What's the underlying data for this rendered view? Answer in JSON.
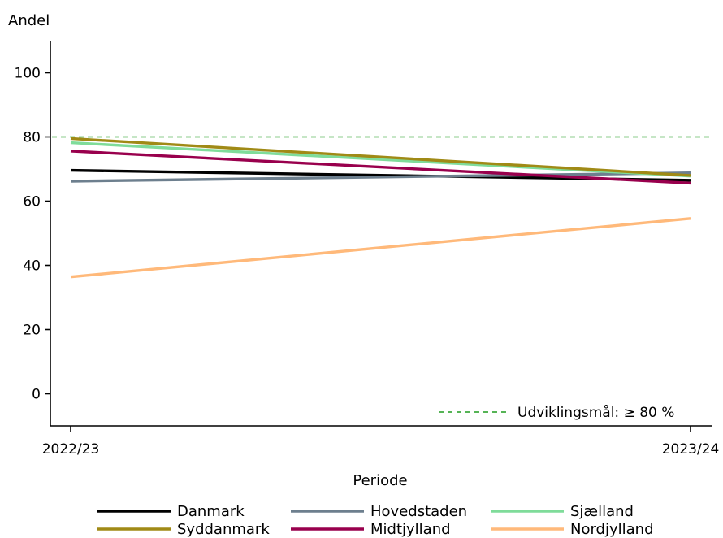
{
  "chart_data": {
    "type": "line",
    "ylabel": "Andel",
    "xlabel": "Periode",
    "categories": [
      "2022/23",
      "2023/24"
    ],
    "ylim": [
      -10,
      110
    ],
    "yticks": [
      0,
      20,
      40,
      60,
      80,
      100
    ],
    "grid": false,
    "legend_position": "bottom",
    "series": [
      {
        "name": "Danmark",
        "color": "#000000",
        "values": [
          69.6,
          66.5
        ]
      },
      {
        "name": "Hovedstaden",
        "color": "#6d7f8e",
        "values": [
          66.2,
          68.8
        ]
      },
      {
        "name": "Sjælland",
        "color": "#7fdc9a",
        "values": [
          78.2,
          67.8
        ]
      },
      {
        "name": "Syddanmark",
        "color": "#a08a16",
        "values": [
          79.5,
          68.0
        ]
      },
      {
        "name": "Midtjylland",
        "color": "#99004d",
        "values": [
          75.6,
          65.6
        ]
      },
      {
        "name": "Nordjylland",
        "color": "#ffb97a",
        "values": [
          36.4,
          54.6
        ]
      }
    ],
    "reference_line": {
      "value": 80,
      "label": "Udviklingsmål: ≥ 80 %",
      "color": "#1e9b1e",
      "style": "dashed"
    }
  }
}
